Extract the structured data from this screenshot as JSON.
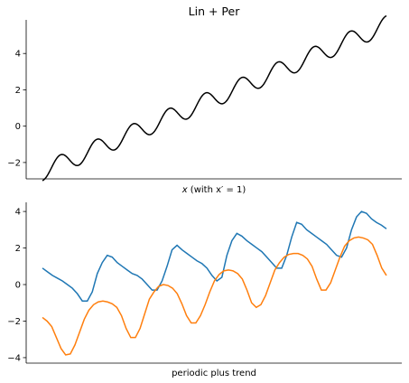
{
  "chart_data": [
    {
      "type": "line",
      "title": "Lin + Per",
      "xlabel_math": "x",
      "xlabel_rest": " (with x′ = 1)",
      "ylabel": "",
      "ylim": [
        -2.9,
        5.85
      ],
      "yticks": [
        -2,
        0,
        2,
        4
      ],
      "xticks_shown": false,
      "grid": false,
      "series": [
        {
          "color": "#000000",
          "function": "0.85*x - 2.5 + 0.5*sin(2*pi*(x - 0.25))",
          "x_range": [
            0,
            9.5
          ],
          "samples": 300
        }
      ]
    },
    {
      "type": "line",
      "title": "",
      "xlabel": "periodic plus trend",
      "ylabel": "",
      "ylim": [
        -4.3,
        4.5
      ],
      "yticks": [
        -4,
        -2,
        0,
        2,
        4
      ],
      "xticks_shown": false,
      "grid": false,
      "x_range": [
        0,
        60
      ],
      "series": [
        {
          "color": "#1f77b4",
          "values": [
            0.9,
            0.7,
            0.5,
            0.35,
            0.2,
            0.0,
            -0.2,
            -0.5,
            -0.9,
            -0.9,
            -0.4,
            0.6,
            1.2,
            1.6,
            1.5,
            1.2,
            1.0,
            0.8,
            0.6,
            0.5,
            0.3,
            0.0,
            -0.3,
            -0.3,
            0.2,
            1.0,
            1.9,
            2.15,
            1.9,
            1.7,
            1.5,
            1.3,
            1.15,
            0.9,
            0.5,
            0.2,
            0.4,
            1.6,
            2.4,
            2.8,
            2.65,
            2.4,
            2.2,
            2.0,
            1.8,
            1.5,
            1.2,
            0.9,
            0.9,
            1.6,
            2.6,
            3.4,
            3.3,
            3.0,
            2.8,
            2.6,
            2.4,
            2.2,
            1.9,
            1.6,
            1.5,
            2.0,
            3.0,
            3.7,
            4.0,
            3.9,
            3.6,
            3.4,
            3.25,
            3.05
          ]
        },
        {
          "color": "#ff7f0e",
          "values": [
            -1.8,
            -2.0,
            -2.3,
            -2.9,
            -3.5,
            -3.85,
            -3.8,
            -3.3,
            -2.6,
            -1.9,
            -1.4,
            -1.1,
            -0.95,
            -0.9,
            -0.95,
            -1.05,
            -1.25,
            -1.7,
            -2.4,
            -2.9,
            -2.9,
            -2.4,
            -1.6,
            -0.8,
            -0.4,
            -0.1,
            0.0,
            -0.05,
            -0.2,
            -0.5,
            -1.05,
            -1.7,
            -2.1,
            -2.1,
            -1.7,
            -1.1,
            -0.4,
            0.2,
            0.55,
            0.75,
            0.8,
            0.75,
            0.6,
            0.3,
            -0.3,
            -1.0,
            -1.25,
            -1.1,
            -0.6,
            0.1,
            0.8,
            1.2,
            1.5,
            1.65,
            1.7,
            1.7,
            1.6,
            1.4,
            1.0,
            0.3,
            -0.3,
            -0.3,
            0.1,
            0.8,
            1.5,
            2.1,
            2.4,
            2.55,
            2.6,
            2.55,
            2.45,
            2.2,
            1.6,
            0.9,
            0.5
          ]
        }
      ]
    }
  ]
}
